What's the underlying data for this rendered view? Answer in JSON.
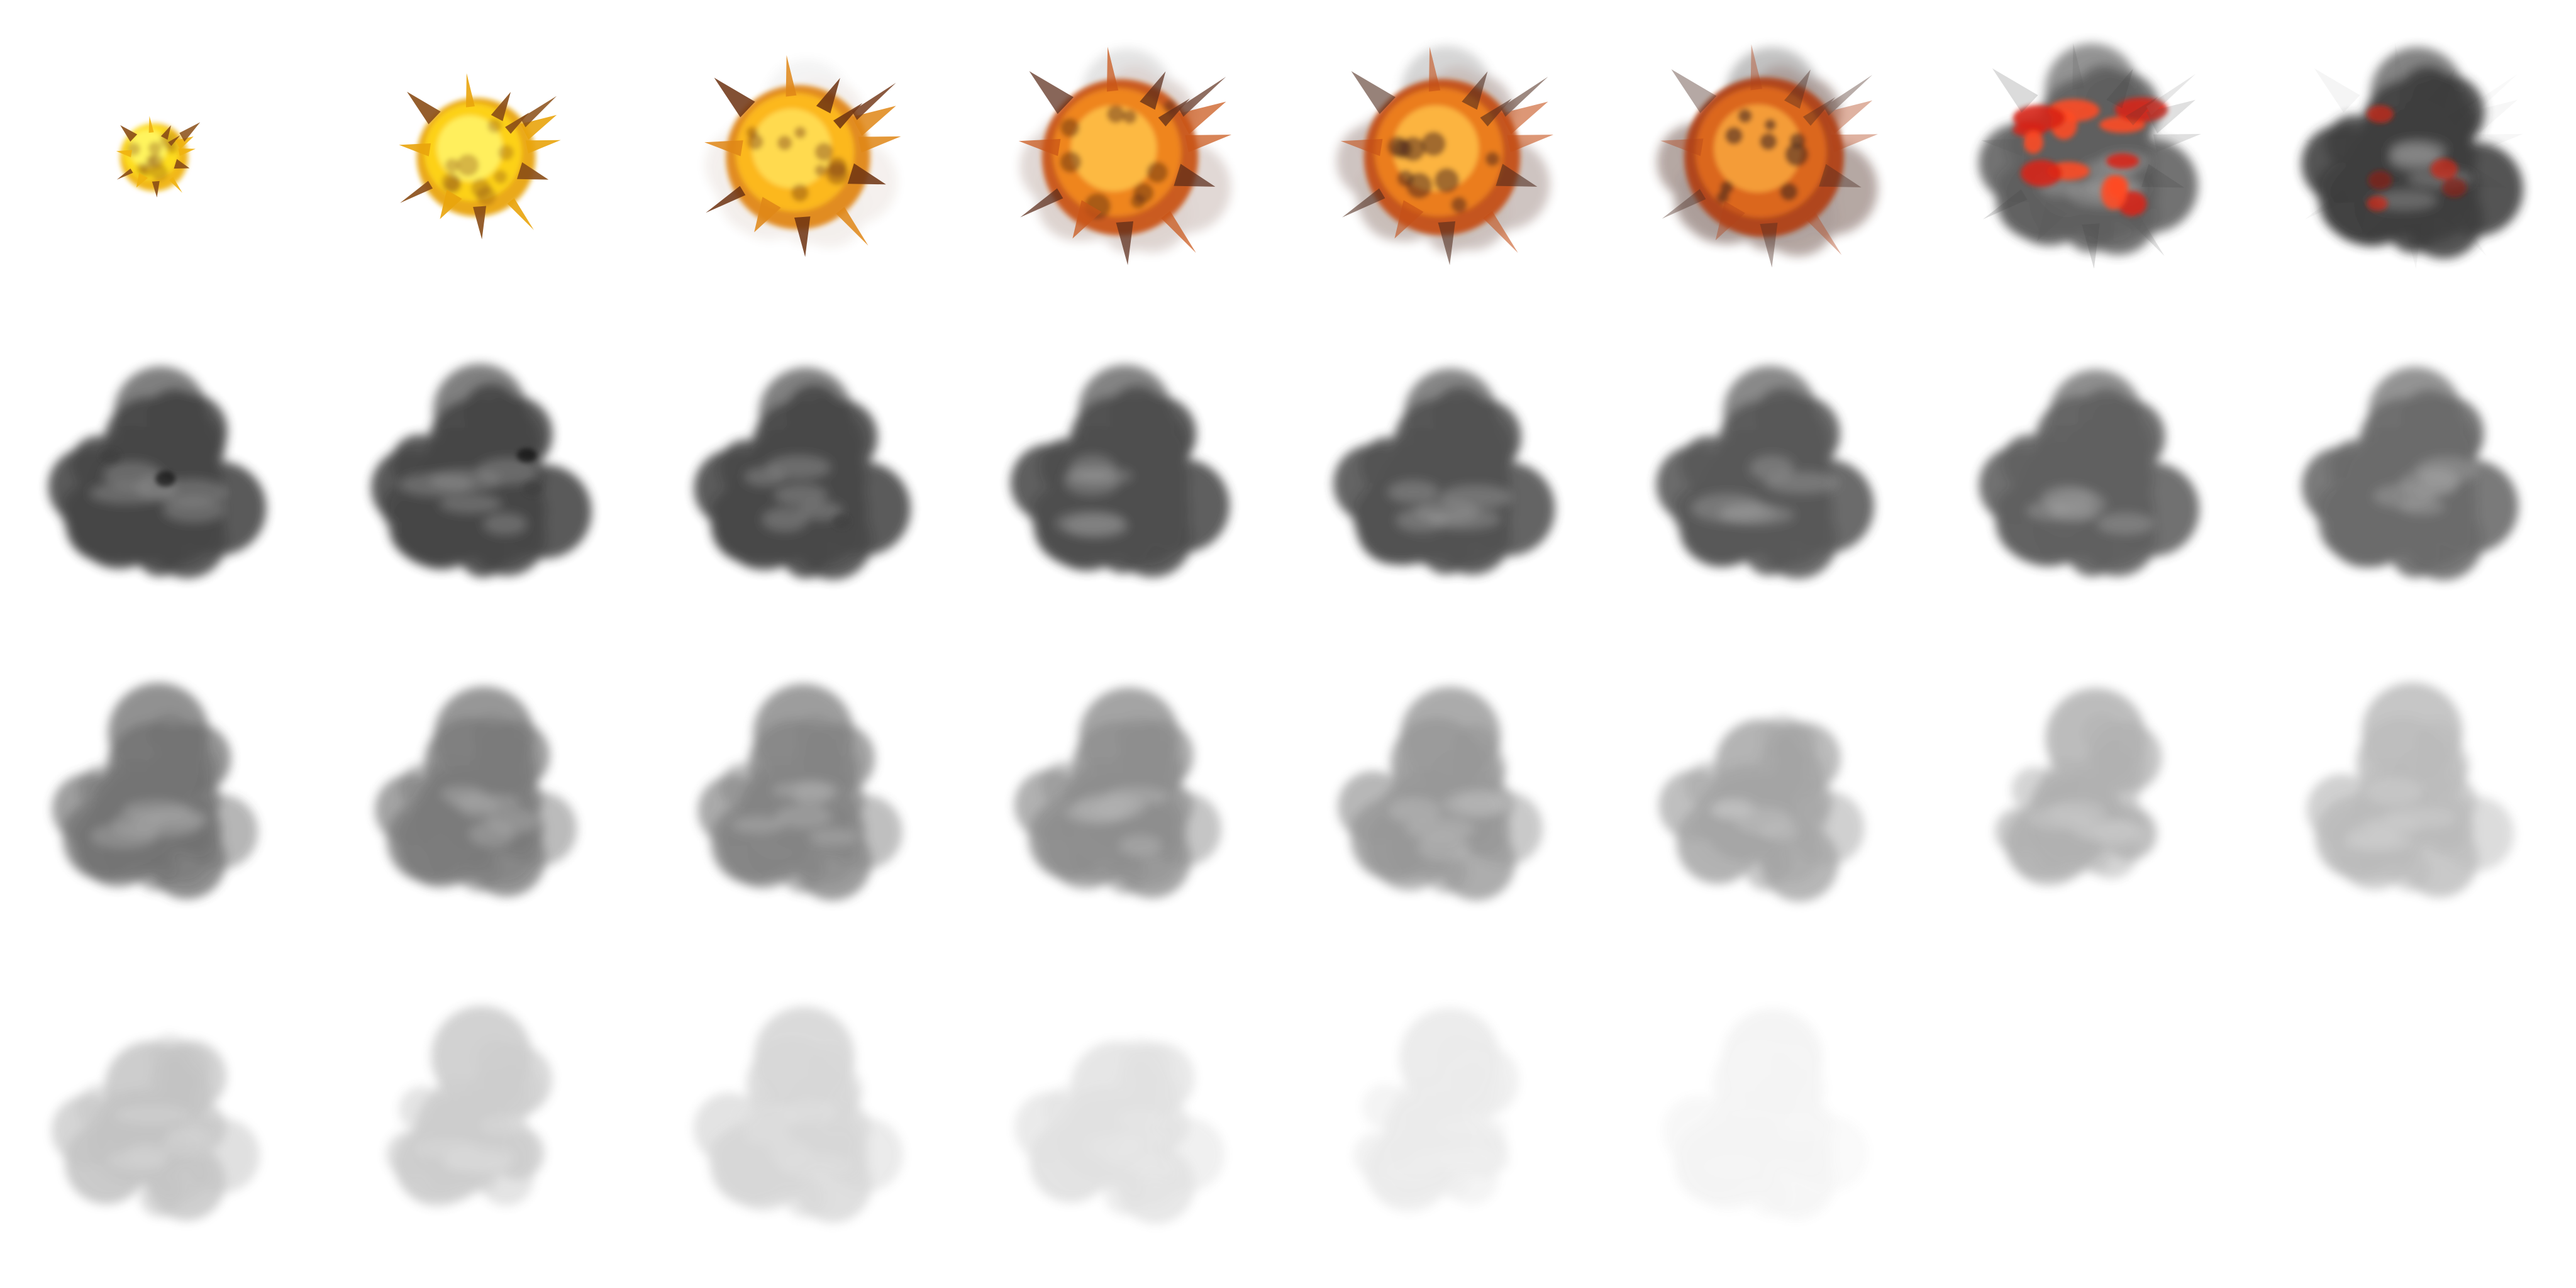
{
  "sprite_sheet": {
    "subject": "explosion",
    "frames": [
      {
        "stage": "flash",
        "palette": [
          "#fff86a",
          "#ffe11c",
          "#f0b30f",
          "#8a4d16"
        ],
        "fireball": true,
        "ember_level": 0.0,
        "smoke_opacity": 0.0,
        "size": 0.4,
        "rays": 1.0
      },
      {
        "stage": "flash",
        "palette": [
          "#fff56a",
          "#ffd61a",
          "#e9a40c",
          "#8a4d16"
        ],
        "fireball": true,
        "ember_level": 0.0,
        "smoke_opacity": 0.0,
        "size": 0.7,
        "rays": 1.0
      },
      {
        "stage": "fire",
        "palette": [
          "#ffe15a",
          "#ffbd1b",
          "#e08717",
          "#6e3312"
        ],
        "fireball": true,
        "ember_level": 0.0,
        "smoke_opacity": 0.08,
        "size": 0.85,
        "rays": 0.95
      },
      {
        "stage": "fire",
        "palette": [
          "#ffc24a",
          "#f38a1c",
          "#c95416",
          "#5a2a18"
        ],
        "fireball": true,
        "ember_level": 0.0,
        "smoke_opacity": 0.2,
        "size": 0.92,
        "rays": 0.8
      },
      {
        "stage": "fire",
        "palette": [
          "#ffbe46",
          "#f0821c",
          "#c44f16",
          "#4f2a1c"
        ],
        "fireball": true,
        "ember_level": 0.0,
        "smoke_opacity": 0.3,
        "size": 0.92,
        "rays": 0.65
      },
      {
        "stage": "fire",
        "palette": [
          "#f8a63e",
          "#e06a1c",
          "#b14218",
          "#4a2a20"
        ],
        "fireball": true,
        "ember_level": 0.0,
        "smoke_opacity": 0.45,
        "size": 0.94,
        "rays": 0.45
      },
      {
        "stage": "embers",
        "palette": [
          "#ff4a22",
          "#d82414",
          "#8c1a12",
          "#3a3a3a"
        ],
        "fireball": false,
        "ember_level": 0.85,
        "smoke_opacity": 0.8,
        "size": 0.95,
        "rays": 0.2
      },
      {
        "stage": "embers",
        "palette": [
          "#d82414",
          "#8c1a12",
          "#3a3a3a",
          "#303030"
        ],
        "fireball": false,
        "ember_level": 0.3,
        "smoke_opacity": 0.92,
        "size": 0.95,
        "rays": 0.05
      },
      {
        "stage": "smoke",
        "palette": [
          "#3d3d3d"
        ],
        "fireball": false,
        "ember_level": 0.08,
        "smoke_opacity": 0.95,
        "size": 0.95,
        "rays": 0.0
      },
      {
        "stage": "smoke",
        "palette": [
          "#3d3d3d"
        ],
        "fireball": false,
        "ember_level": 0.06,
        "smoke_opacity": 0.95,
        "size": 0.95,
        "rays": 0.0
      },
      {
        "stage": "smoke",
        "palette": [
          "#3d3d3d"
        ],
        "fireball": false,
        "ember_level": 0.03,
        "smoke_opacity": 0.94,
        "size": 0.95,
        "rays": 0.0
      },
      {
        "stage": "smoke",
        "palette": [
          "#3f3f3f"
        ],
        "fireball": false,
        "ember_level": 0.0,
        "smoke_opacity": 0.92,
        "size": 0.95,
        "rays": 0.0
      },
      {
        "stage": "smoke",
        "palette": [
          "#404040"
        ],
        "fireball": false,
        "ember_level": 0.0,
        "smoke_opacity": 0.9,
        "size": 0.95,
        "rays": 0.0
      },
      {
        "stage": "smoke",
        "palette": [
          "#424242"
        ],
        "fireball": false,
        "ember_level": 0.0,
        "smoke_opacity": 0.88,
        "size": 0.95,
        "rays": 0.0
      },
      {
        "stage": "smoke",
        "palette": [
          "#444444"
        ],
        "fireball": false,
        "ember_level": 0.0,
        "smoke_opacity": 0.84,
        "size": 0.95,
        "rays": 0.0
      },
      {
        "stage": "smoke",
        "palette": [
          "#464646"
        ],
        "fireball": false,
        "ember_level": 0.0,
        "smoke_opacity": 0.8,
        "size": 0.95,
        "rays": 0.0
      },
      {
        "stage": "dissipate",
        "palette": [
          "#484848"
        ],
        "fireball": false,
        "ember_level": 0.0,
        "smoke_opacity": 0.76,
        "size": 0.95,
        "rays": 0.0
      },
      {
        "stage": "dissipate",
        "palette": [
          "#4a4a4a"
        ],
        "fireball": false,
        "ember_level": 0.0,
        "smoke_opacity": 0.72,
        "size": 0.95,
        "rays": 0.0
      },
      {
        "stage": "dissipate",
        "palette": [
          "#4c4c4c"
        ],
        "fireball": false,
        "ember_level": 0.0,
        "smoke_opacity": 0.68,
        "size": 0.95,
        "rays": 0.0
      },
      {
        "stage": "dissipate",
        "palette": [
          "#4e4e4e"
        ],
        "fireball": false,
        "ember_level": 0.0,
        "smoke_opacity": 0.63,
        "size": 0.95,
        "rays": 0.0
      },
      {
        "stage": "dissipate",
        "palette": [
          "#505050"
        ],
        "fireball": false,
        "ember_level": 0.0,
        "smoke_opacity": 0.58,
        "size": 0.95,
        "rays": 0.0
      },
      {
        "stage": "dissipate",
        "palette": [
          "#535353"
        ],
        "fireball": false,
        "ember_level": 0.0,
        "smoke_opacity": 0.52,
        "size": 0.95,
        "rays": 0.0
      },
      {
        "stage": "dissipate",
        "palette": [
          "#565656"
        ],
        "fireball": false,
        "ember_level": 0.0,
        "smoke_opacity": 0.46,
        "size": 0.95,
        "rays": 0.0
      },
      {
        "stage": "dissipate",
        "palette": [
          "#595959"
        ],
        "fireball": false,
        "ember_level": 0.0,
        "smoke_opacity": 0.4,
        "size": 0.95,
        "rays": 0.0
      },
      {
        "stage": "fade",
        "palette": [
          "#5c5c5c"
        ],
        "fireball": false,
        "ember_level": 0.0,
        "smoke_opacity": 0.36,
        "size": 0.95,
        "rays": 0.0
      },
      {
        "stage": "fade",
        "palette": [
          "#5f5f5f"
        ],
        "fireball": false,
        "ember_level": 0.0,
        "smoke_opacity": 0.31,
        "size": 0.95,
        "rays": 0.0
      },
      {
        "stage": "fade",
        "palette": [
          "#626262"
        ],
        "fireball": false,
        "ember_level": 0.0,
        "smoke_opacity": 0.25,
        "size": 0.95,
        "rays": 0.0
      },
      {
        "stage": "fade",
        "palette": [
          "#666666"
        ],
        "fireball": false,
        "ember_level": 0.0,
        "smoke_opacity": 0.19,
        "size": 0.95,
        "rays": 0.0
      },
      {
        "stage": "fade",
        "palette": [
          "#6a6a6a"
        ],
        "fireball": false,
        "ember_level": 0.0,
        "smoke_opacity": 0.13,
        "size": 0.95,
        "rays": 0.0
      },
      {
        "stage": "fade",
        "palette": [
          "#707070"
        ],
        "fireball": false,
        "ember_level": 0.0,
        "smoke_opacity": 0.07,
        "size": 0.95,
        "rays": 0.0
      }
    ],
    "empty_cells": 2
  }
}
